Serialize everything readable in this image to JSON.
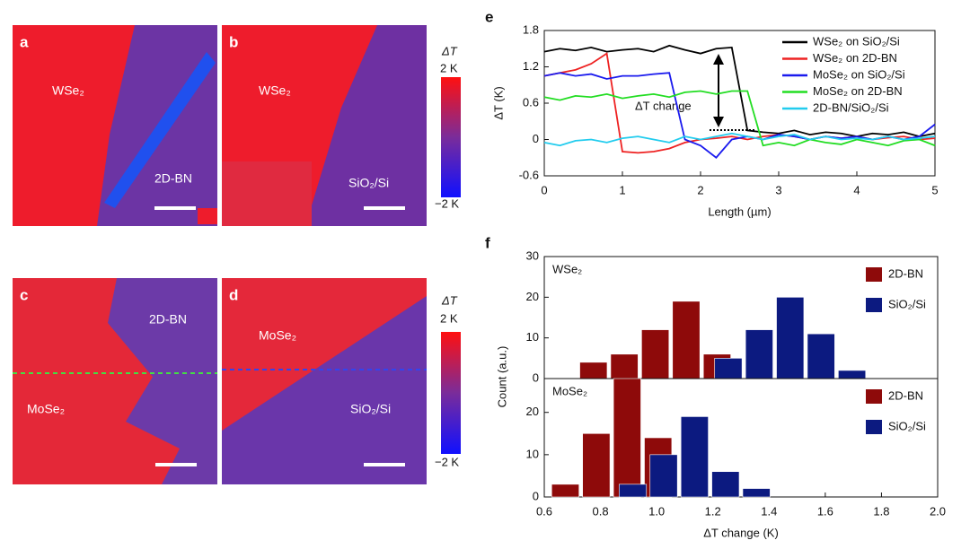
{
  "image_panels": [
    {
      "label": "a",
      "texts": [
        "WSe₂",
        "2D-BN"
      ]
    },
    {
      "label": "b",
      "texts": [
        "WSe₂",
        "SiO₂/Si"
      ]
    },
    {
      "label": "c",
      "texts": [
        "2D-BN",
        "MoSe₂"
      ]
    },
    {
      "label": "d",
      "texts": [
        "MoSe₂",
        "SiO₂/Si"
      ]
    }
  ],
  "colorbars": [
    {
      "title": "ΔT",
      "max_label": "2 K",
      "min_label": "−2 K"
    },
    {
      "title": "ΔT",
      "max_label": "2 K",
      "min_label": "−2 K"
    }
  ],
  "panel_f": {
    "label": "f",
    "ylabel": "Count (a.u.)"
  },
  "chart_data": [
    {
      "type": "line",
      "label": "e",
      "xlabel": "Length (µm)",
      "ylabel": "ΔT (K)",
      "annotation": "ΔT change",
      "x": [
        0,
        0.2,
        0.4,
        0.6,
        0.8,
        1,
        1.2,
        1.4,
        1.6,
        1.8,
        2,
        2.2,
        2.4,
        2.6,
        2.8,
        3,
        3.2,
        3.4,
        3.6,
        3.8,
        4,
        4.2,
        4.4,
        4.6,
        4.8,
        5
      ],
      "xlim": [
        0,
        5
      ],
      "xticks": [
        0,
        1,
        2,
        3,
        4,
        5
      ],
      "ylim": [
        -0.6,
        1.8
      ],
      "yticks": [
        -0.6,
        0,
        0.6,
        1.2,
        1.8
      ],
      "legend": "upper right",
      "series": [
        {
          "name": "WSe₂ on SiO₂/Si",
          "color": "#000000",
          "values": [
            1.45,
            1.5,
            1.47,
            1.52,
            1.45,
            1.48,
            1.5,
            1.45,
            1.55,
            1.48,
            1.42,
            1.5,
            1.52,
            0.15,
            0.12,
            0.1,
            0.15,
            0.08,
            0.12,
            0.1,
            0.05,
            0.1,
            0.08,
            0.12,
            0.05,
            0.1
          ]
        },
        {
          "name": "WSe₂ on 2D-BN",
          "color": "#ee2222",
          "values": [
            1.05,
            1.1,
            1.15,
            1.25,
            1.42,
            -0.2,
            -0.22,
            -0.2,
            -0.15,
            -0.05,
            0.0,
            0.02,
            0.05,
            0.0,
            0.05,
            0.08,
            0.05,
            0.0,
            0.05,
            0.02,
            0.05,
            0.0,
            0.03,
            0.05,
            0.0,
            0.02
          ]
        },
        {
          "name": "MoSe₂ on SiO₂/Si",
          "color": "#1a1aee",
          "values": [
            1.05,
            1.1,
            1.05,
            1.08,
            1.0,
            1.05,
            1.05,
            1.08,
            1.1,
            0.0,
            -0.1,
            -0.3,
            0.0,
            0.05,
            0.0,
            0.08,
            0.05,
            0.0,
            0.05,
            0.02,
            0.05,
            0.0,
            0.05,
            0.0,
            0.05,
            0.25
          ]
        },
        {
          "name": "MoSe₂ on 2D-BN",
          "color": "#22dd22",
          "values": [
            0.7,
            0.65,
            0.72,
            0.7,
            0.75,
            0.68,
            0.72,
            0.75,
            0.7,
            0.78,
            0.8,
            0.75,
            0.8,
            0.8,
            -0.1,
            -0.05,
            -0.1,
            0.0,
            -0.05,
            -0.08,
            0.0,
            -0.05,
            -0.1,
            -0.02,
            0.0,
            -0.1
          ]
        },
        {
          "name": "2D-BN/SiO₂/Si",
          "color": "#22ccee",
          "values": [
            -0.05,
            -0.1,
            -0.02,
            0.0,
            -0.05,
            0.02,
            0.05,
            0.0,
            -0.05,
            0.05,
            0.0,
            0.05,
            0.1,
            0.05,
            0.0,
            0.05,
            0.08,
            0.0,
            0.05,
            0.0,
            0.02,
            0.0,
            0.05,
            0.0,
            0.02,
            0.05
          ]
        }
      ]
    },
    {
      "type": "histogram",
      "title": "WSe₂",
      "xlim": [
        0.6,
        2.0
      ],
      "ylim": [
        0,
        30
      ],
      "yticks": [
        0,
        10,
        20,
        30
      ],
      "legend": "upper right",
      "series": [
        {
          "name": "2D-BN",
          "color": "#8e0a0a",
          "bins": [
            0.72,
            0.83,
            0.94,
            1.05,
            1.16,
            1.27
          ],
          "values": [
            4,
            6,
            12,
            19,
            6
          ]
        },
        {
          "name": "SiO₂/Si",
          "color": "#0c1a80",
          "bins": [
            1.2,
            1.31,
            1.42,
            1.53,
            1.64,
            1.75
          ],
          "values": [
            5,
            12,
            20,
            11,
            2
          ]
        }
      ]
    },
    {
      "type": "histogram",
      "title": "MoSe₂",
      "xlabel": "ΔT change (K)",
      "xlim": [
        0.6,
        2.0
      ],
      "xticks": [
        0.6,
        0.8,
        {
          "value": 1.0,
          "label": "1.0"
        },
        1.2,
        1.4,
        1.6,
        1.8,
        {
          "value": 2.0,
          "label": "2.0"
        }
      ],
      "ylim": [
        0,
        28
      ],
      "yticks": [
        0,
        10,
        20
      ],
      "legend": "upper right",
      "series": [
        {
          "name": "2D-BN",
          "color": "#8e0a0a",
          "bins": [
            0.62,
            0.73,
            0.84,
            0.95,
            1.06
          ],
          "values": [
            3,
            15,
            28,
            14
          ]
        },
        {
          "name": "SiO₂/Si",
          "color": "#0c1a80",
          "bins": [
            0.86,
            0.97,
            1.08,
            1.19,
            1.3,
            1.41
          ],
          "values": [
            3,
            10,
            19,
            6,
            2
          ]
        }
      ]
    }
  ]
}
